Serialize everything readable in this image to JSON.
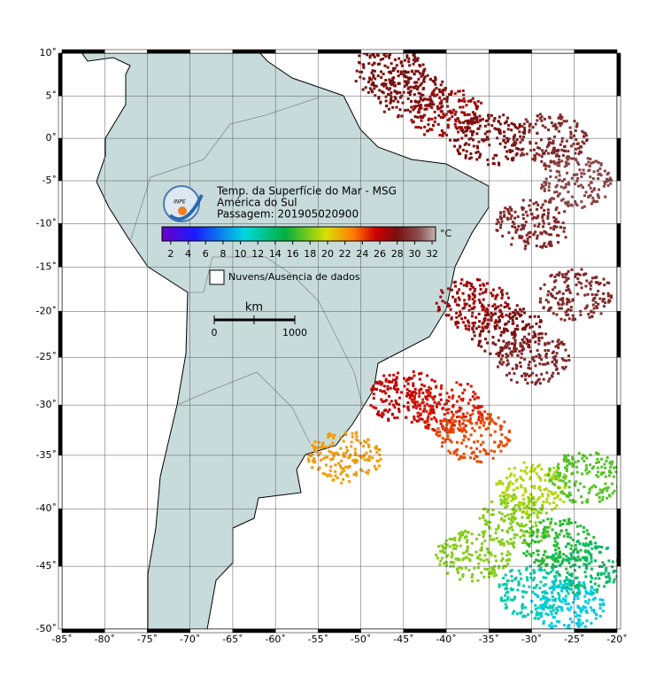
{
  "map": {
    "title": "Temp. da Superfície do Mar - MSG",
    "region": "América do Sul",
    "pass": "Passagem: 201905020900",
    "logo_text": "INPE",
    "lonlim": [
      -85,
      -20
    ],
    "latlim": [
      -50,
      10
    ],
    "lonticks": [
      {
        "value": -85,
        "label": "-85˚"
      },
      {
        "value": -80,
        "label": "-80˚"
      },
      {
        "value": -75,
        "label": "-75˚"
      },
      {
        "value": -70,
        "label": "-70˚"
      },
      {
        "value": -65,
        "label": "-65˚"
      },
      {
        "value": -60,
        "label": "-60˚"
      },
      {
        "value": -55,
        "label": "-55˚"
      },
      {
        "value": -50,
        "label": "-50˚"
      },
      {
        "value": -45,
        "label": "-45˚"
      },
      {
        "value": -40,
        "label": "-40˚"
      },
      {
        "value": -35,
        "label": "-35˚"
      },
      {
        "value": -30,
        "label": "-30˚"
      },
      {
        "value": -25,
        "label": "-25˚"
      },
      {
        "value": -20,
        "label": "-20˚"
      }
    ],
    "latticks": [
      {
        "value": 10,
        "label": "10˚"
      },
      {
        "value": 5,
        "label": "5˚"
      },
      {
        "value": 0,
        "label": "0˚"
      },
      {
        "value": -5,
        "label": "-5˚"
      },
      {
        "value": -10,
        "label": "-10˚"
      },
      {
        "value": -15,
        "label": "-15˚"
      },
      {
        "value": -20,
        "label": "-20˚"
      },
      {
        "value": -25,
        "label": "-25˚"
      },
      {
        "value": -30,
        "label": "-30˚"
      },
      {
        "value": -35,
        "label": "-35˚"
      },
      {
        "value": -40,
        "label": "-40˚"
      },
      {
        "value": -45,
        "label": "-45˚"
      },
      {
        "value": -50,
        "label": "-50˚"
      }
    ],
    "colorbar": {
      "unit": "°C",
      "clim": [
        1,
        32.4
      ],
      "ticks": [
        2,
        4,
        6,
        8,
        10,
        12,
        14,
        16,
        18,
        20,
        22,
        24,
        26,
        28,
        30,
        32
      ]
    },
    "legend": "Nuvens/Ausencia de dados",
    "scale": {
      "unit": "km",
      "labels": [
        "0",
        "1000"
      ]
    },
    "sst": [
      {
        "lon": -47,
        "lat": 8,
        "temp": 28
      },
      {
        "lon": -44,
        "lat": 5,
        "temp": 28
      },
      {
        "lon": -40,
        "lat": 3,
        "temp": 27
      },
      {
        "lon": -35,
        "lat": 0,
        "temp": 28
      },
      {
        "lon": -28,
        "lat": 0,
        "temp": 29
      },
      {
        "lon": -25,
        "lat": -5,
        "temp": 30
      },
      {
        "lon": -30,
        "lat": -10,
        "temp": 29
      },
      {
        "lon": -25,
        "lat": -18,
        "temp": 29
      },
      {
        "lon": -33,
        "lat": -22,
        "temp": 28
      },
      {
        "lon": -37,
        "lat": -19,
        "temp": 27
      },
      {
        "lon": -30,
        "lat": -25,
        "temp": 29
      },
      {
        "lon": -45,
        "lat": -29,
        "temp": 26
      },
      {
        "lon": -40,
        "lat": -30,
        "temp": 25
      },
      {
        "lon": -37,
        "lat": -33,
        "temp": 24
      },
      {
        "lon": -52,
        "lat": -35,
        "temp": 22
      },
      {
        "lon": -30,
        "lat": -38,
        "temp": 19
      },
      {
        "lon": -24,
        "lat": -37,
        "temp": 17
      },
      {
        "lon": -32,
        "lat": -41,
        "temp": 18
      },
      {
        "lon": -27,
        "lat": -43,
        "temp": 16
      },
      {
        "lon": -24,
        "lat": -45,
        "temp": 14
      },
      {
        "lon": -30,
        "lat": -47,
        "temp": 12
      },
      {
        "lon": -26,
        "lat": -48,
        "temp": 10
      },
      {
        "lon": -37,
        "lat": -44,
        "temp": 18
      }
    ]
  }
}
